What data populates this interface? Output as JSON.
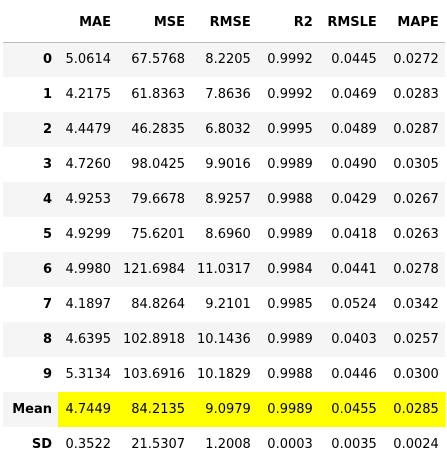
{
  "table": {
    "corner": "",
    "columns": [
      "MAE",
      "MSE",
      "RMSE",
      "R2",
      "RMSLE",
      "MAPE"
    ],
    "rows": [
      {
        "label": "0",
        "cells": [
          "5.0614",
          "67.5768",
          "8.2205",
          "0.9992",
          "0.0445",
          "0.0272"
        ]
      },
      {
        "label": "1",
        "cells": [
          "4.2175",
          "61.8363",
          "7.8636",
          "0.9992",
          "0.0469",
          "0.0283"
        ]
      },
      {
        "label": "2",
        "cells": [
          "4.4479",
          "46.2835",
          "6.8032",
          "0.9995",
          "0.0489",
          "0.0287"
        ]
      },
      {
        "label": "3",
        "cells": [
          "4.7260",
          "98.0425",
          "9.9016",
          "0.9989",
          "0.0490",
          "0.0305"
        ]
      },
      {
        "label": "4",
        "cells": [
          "4.9253",
          "79.6678",
          "8.9257",
          "0.9988",
          "0.0429",
          "0.0267"
        ]
      },
      {
        "label": "5",
        "cells": [
          "4.9299",
          "75.6201",
          "8.6960",
          "0.9989",
          "0.0418",
          "0.0263"
        ]
      },
      {
        "label": "6",
        "cells": [
          "4.9980",
          "121.6984",
          "11.0317",
          "0.9984",
          "0.0441",
          "0.0278"
        ]
      },
      {
        "label": "7",
        "cells": [
          "4.1897",
          "84.8264",
          "9.2101",
          "0.9985",
          "0.0524",
          "0.0342"
        ]
      },
      {
        "label": "8",
        "cells": [
          "4.6395",
          "102.8918",
          "10.1436",
          "0.9989",
          "0.0403",
          "0.0257"
        ]
      },
      {
        "label": "9",
        "cells": [
          "5.3134",
          "103.6916",
          "10.1829",
          "0.9988",
          "0.0446",
          "0.0300"
        ]
      },
      {
        "label": "Mean",
        "cells": [
          "4.7449",
          "84.2135",
          "9.0979",
          "0.9989",
          "0.0455",
          "0.0285"
        ],
        "highlight": true
      },
      {
        "label": "SD",
        "cells": [
          "0.3522",
          "21.5307",
          "1.2008",
          "0.0003",
          "0.0035",
          "0.0024"
        ]
      }
    ],
    "highlight_color": "#ffff00",
    "stripe_color": "#f5f5f5"
  }
}
